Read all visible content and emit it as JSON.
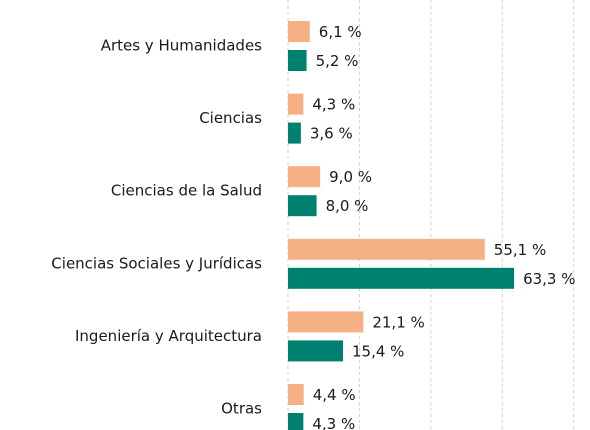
{
  "chart_data": {
    "type": "bar",
    "orientation": "horizontal",
    "categories": [
      "Artes y Humanidades",
      "Ciencias",
      "Ciencias de la Salud",
      "Ciencias Sociales y Jurídicas",
      "Ingeniería y Arquitectura",
      "Otras"
    ],
    "series": [
      {
        "color": "#f5b183",
        "values": [
          6.1,
          4.3,
          9.0,
          55.1,
          21.1,
          4.4
        ],
        "value_labels": [
          "6,1 %",
          "4,3 %",
          "9,0 %",
          "55,1 %",
          "21,1 %",
          "4,4 %"
        ]
      },
      {
        "color": "#00806e",
        "values": [
          5.2,
          3.6,
          8.0,
          63.3,
          15.4,
          4.3
        ],
        "value_labels": [
          "5,2 %",
          "3,6 %",
          "8,0 %",
          "63,3 %",
          "15,4 %",
          "4,3 %"
        ]
      }
    ],
    "xlim": [
      0,
      84
    ],
    "xticks": [
      0,
      20,
      40,
      60,
      80
    ],
    "grid": true
  }
}
